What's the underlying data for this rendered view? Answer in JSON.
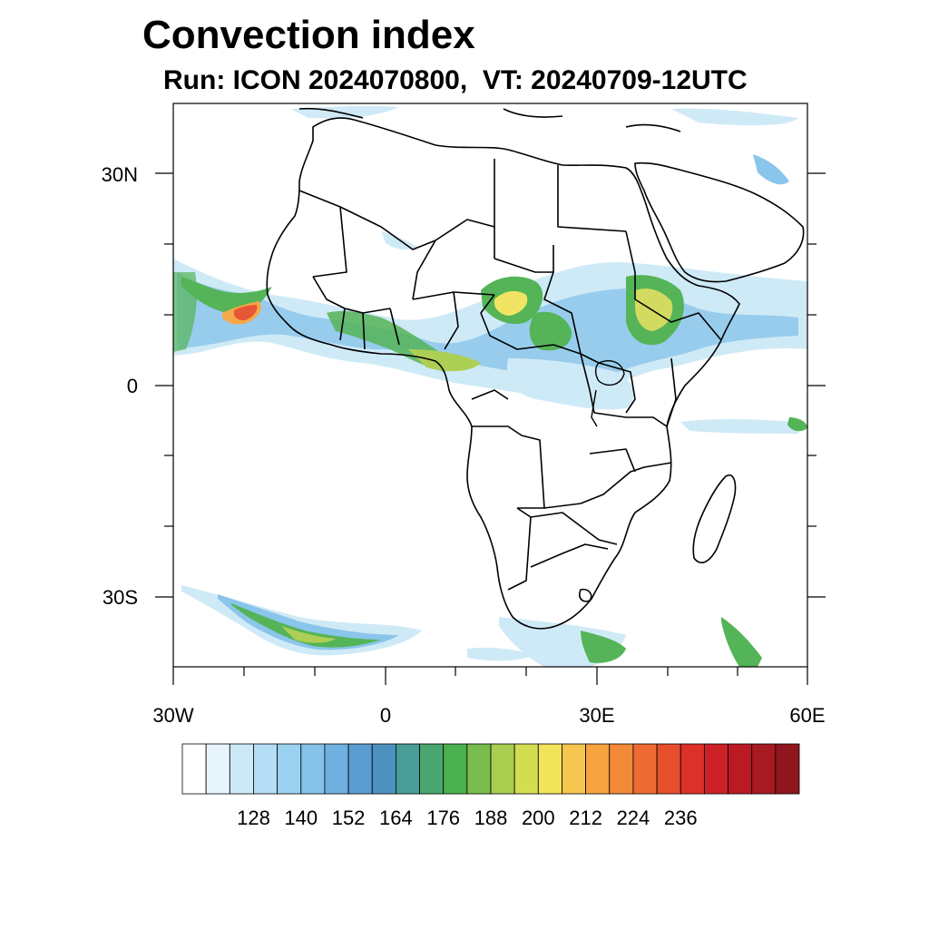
{
  "header": {
    "title": "Convection index",
    "subtitle": "Run: ICON 2024070800,  VT: 20240709-12UTC"
  },
  "axes": {
    "lat_labels": [
      "30N",
      "0",
      "30S"
    ],
    "lon_labels": [
      "30W",
      "0",
      "30E",
      "60E"
    ],
    "lon_range": [
      -30,
      60
    ],
    "lat_range": [
      -40,
      40
    ]
  },
  "colorbar": {
    "labels": [
      "128",
      "140",
      "152",
      "164",
      "176",
      "188",
      "200",
      "212",
      "224",
      "236"
    ],
    "colors": [
      "#ffffff",
      "#e8f4fb",
      "#cde9f7",
      "#b5ddf5",
      "#9bd2f1",
      "#84c2ea",
      "#6fb0e0",
      "#5b9dd3",
      "#4d92be",
      "#4a9c96",
      "#48a66e",
      "#4bb04f",
      "#79bd4e",
      "#a9cd4e",
      "#d4dc52",
      "#f1e35a",
      "#f7c64e",
      "#f6a440",
      "#f28a39",
      "#ee6c32",
      "#e64e2c",
      "#dc3028",
      "#cd2127",
      "#bb1a24",
      "#a71a21",
      "#8f161d"
    ]
  },
  "field_colors": {
    "light_blue": "#cde9f7",
    "blue": "#84c2ea",
    "green": "#4bb04f",
    "yellow": "#f1e35a",
    "orange": "#f6a440",
    "red": "#e64e2c"
  }
}
